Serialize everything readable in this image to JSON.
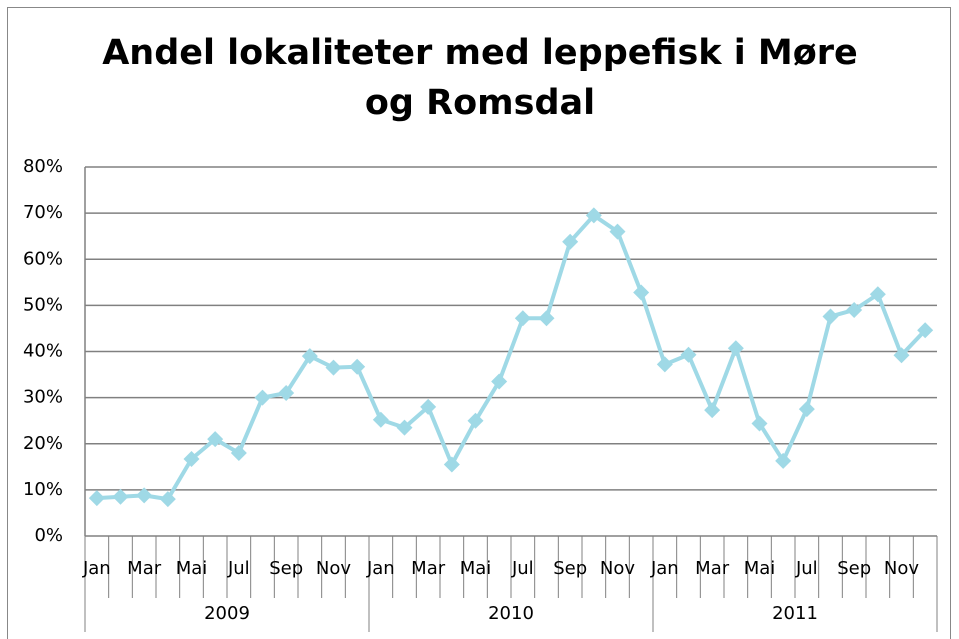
{
  "chart_data": {
    "type": "line",
    "title": "Andel lokaliteter med leppefisk i Møre og Romsdal",
    "categories": [
      "Jan",
      null,
      "Mar",
      null,
      "Mai",
      null,
      "Jul",
      null,
      "Sep",
      null,
      "Nov",
      null,
      "Jan",
      null,
      "Mar",
      null,
      "Mai",
      null,
      "Jul",
      null,
      "Sep",
      null,
      "Nov",
      null,
      "Jan",
      null,
      "Mar",
      null,
      "Mai",
      null,
      "Jul",
      null,
      "Sep",
      null,
      "Nov",
      null
    ],
    "years": [
      "2009",
      "2010",
      "2011"
    ],
    "values": [
      8.2,
      8.5,
      8.8,
      8.0,
      16.7,
      21.0,
      18.0,
      30.0,
      31.0,
      39.0,
      36.5,
      36.7,
      25.2,
      23.5,
      28.0,
      15.5,
      25.0,
      33.5,
      47.2,
      47.2,
      63.8,
      69.5,
      66.0,
      52.8,
      37.2,
      39.3,
      27.3,
      40.7,
      24.4,
      16.3,
      27.5,
      47.6,
      49.0,
      52.4,
      39.2,
      44.6
    ],
    "color": "#9fd9e6",
    "ylim": [
      0,
      80
    ],
    "yticks": [
      {
        "value": 0,
        "label": "0%"
      },
      {
        "value": 10,
        "label": "10%"
      },
      {
        "value": 20,
        "label": "20%"
      },
      {
        "value": 30,
        "label": "30%"
      },
      {
        "value": 40,
        "label": "40%"
      },
      {
        "value": 50,
        "label": "50%"
      },
      {
        "value": 60,
        "label": "60%"
      },
      {
        "value": 70,
        "label": "70%"
      },
      {
        "value": 80,
        "label": "80%"
      }
    ],
    "grid": true
  }
}
